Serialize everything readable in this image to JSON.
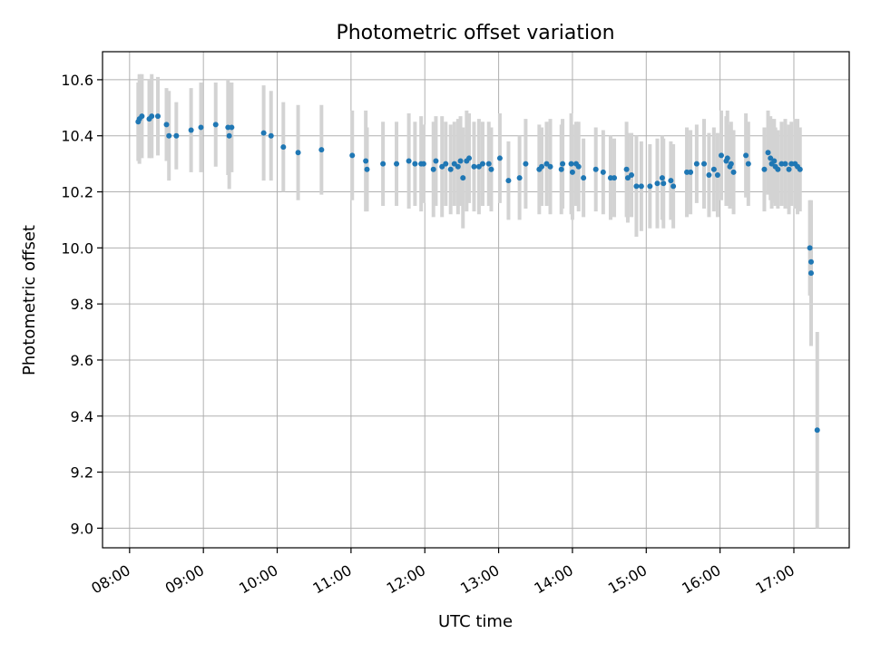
{
  "chart_data": {
    "type": "scatter",
    "title": "Photometric offset variation",
    "xlabel": "UTC time",
    "ylabel": "Photometric offset",
    "x_tick_labels": [
      "08:00",
      "09:00",
      "10:00",
      "11:00",
      "12:00",
      "13:00",
      "14:00",
      "15:00",
      "16:00",
      "17:00"
    ],
    "y_tick_labels": [
      "9.0",
      "9.2",
      "9.4",
      "9.6",
      "9.8",
      "10.0",
      "10.2",
      "10.4",
      "10.6"
    ],
    "xlim": [
      "07:38",
      "17:45"
    ],
    "ylim": [
      8.93,
      10.7
    ],
    "grid": true,
    "colors": {
      "point": "#1f77b4",
      "errorbar": "#d3d3d3",
      "grid": "#b0b0b0",
      "axes": "#000000"
    },
    "points": [
      {
        "t": "08:07",
        "y": 10.45,
        "err": 0.14
      },
      {
        "t": "08:08",
        "y": 10.46,
        "err": 0.16
      },
      {
        "t": "08:10",
        "y": 10.47,
        "err": 0.15
      },
      {
        "t": "08:16",
        "y": 10.46,
        "err": 0.14
      },
      {
        "t": "08:18",
        "y": 10.47,
        "err": 0.15
      },
      {
        "t": "08:23",
        "y": 10.47,
        "err": 0.14
      },
      {
        "t": "08:30",
        "y": 10.44,
        "err": 0.13
      },
      {
        "t": "08:32",
        "y": 10.4,
        "err": 0.16
      },
      {
        "t": "08:38",
        "y": 10.4,
        "err": 0.12
      },
      {
        "t": "08:50",
        "y": 10.42,
        "err": 0.15
      },
      {
        "t": "08:58",
        "y": 10.43,
        "err": 0.16
      },
      {
        "t": "09:10",
        "y": 10.44,
        "err": 0.15
      },
      {
        "t": "09:20",
        "y": 10.43,
        "err": 0.17
      },
      {
        "t": "09:21",
        "y": 10.4,
        "err": 0.19
      },
      {
        "t": "09:23",
        "y": 10.43,
        "err": 0.16
      },
      {
        "t": "09:49",
        "y": 10.41,
        "err": 0.17
      },
      {
        "t": "09:55",
        "y": 10.4,
        "err": 0.16
      },
      {
        "t": "10:05",
        "y": 10.36,
        "err": 0.16
      },
      {
        "t": "10:17",
        "y": 10.34,
        "err": 0.17
      },
      {
        "t": "10:36",
        "y": 10.35,
        "err": 0.16
      },
      {
        "t": "11:01",
        "y": 10.33,
        "err": 0.16
      },
      {
        "t": "11:12",
        "y": 10.31,
        "err": 0.18
      },
      {
        "t": "11:13",
        "y": 10.28,
        "err": 0.15
      },
      {
        "t": "11:26",
        "y": 10.3,
        "err": 0.15
      },
      {
        "t": "11:37",
        "y": 10.3,
        "err": 0.15
      },
      {
        "t": "11:47",
        "y": 10.31,
        "err": 0.17
      },
      {
        "t": "11:52",
        "y": 10.3,
        "err": 0.15
      },
      {
        "t": "11:57",
        "y": 10.3,
        "err": 0.17
      },
      {
        "t": "11:59",
        "y": 10.3,
        "err": 0.14
      },
      {
        "t": "12:07",
        "y": 10.28,
        "err": 0.17
      },
      {
        "t": "12:09",
        "y": 10.31,
        "err": 0.16
      },
      {
        "t": "12:14",
        "y": 10.29,
        "err": 0.18
      },
      {
        "t": "12:17",
        "y": 10.3,
        "err": 0.15
      },
      {
        "t": "12:21",
        "y": 10.28,
        "err": 0.16
      },
      {
        "t": "12:24",
        "y": 10.3,
        "err": 0.15
      },
      {
        "t": "12:27",
        "y": 10.29,
        "err": 0.17
      },
      {
        "t": "12:29",
        "y": 10.31,
        "err": 0.16
      },
      {
        "t": "12:31",
        "y": 10.25,
        "err": 0.18
      },
      {
        "t": "12:34",
        "y": 10.31,
        "err": 0.18
      },
      {
        "t": "12:36",
        "y": 10.32,
        "err": 0.16
      },
      {
        "t": "12:40",
        "y": 10.29,
        "err": 0.16
      },
      {
        "t": "12:44",
        "y": 10.29,
        "err": 0.17
      },
      {
        "t": "12:47",
        "y": 10.3,
        "err": 0.15
      },
      {
        "t": "12:52",
        "y": 10.3,
        "err": 0.15
      },
      {
        "t": "12:54",
        "y": 10.28,
        "err": 0.15
      },
      {
        "t": "13:01",
        "y": 10.32,
        "err": 0.16
      },
      {
        "t": "13:08",
        "y": 10.24,
        "err": 0.14
      },
      {
        "t": "13:17",
        "y": 10.25,
        "err": 0.15
      },
      {
        "t": "13:22",
        "y": 10.3,
        "err": 0.16
      },
      {
        "t": "13:33",
        "y": 10.28,
        "err": 0.16
      },
      {
        "t": "13:35",
        "y": 10.29,
        "err": 0.14
      },
      {
        "t": "13:39",
        "y": 10.3,
        "err": 0.15
      },
      {
        "t": "13:42",
        "y": 10.29,
        "err": 0.17
      },
      {
        "t": "13:51",
        "y": 10.28,
        "err": 0.16
      },
      {
        "t": "13:52",
        "y": 10.3,
        "err": 0.16
      },
      {
        "t": "13:59",
        "y": 10.3,
        "err": 0.18
      },
      {
        "t": "14:00",
        "y": 10.27,
        "err": 0.17
      },
      {
        "t": "14:03",
        "y": 10.3,
        "err": 0.15
      },
      {
        "t": "14:05",
        "y": 10.29,
        "err": 0.16
      },
      {
        "t": "14:09",
        "y": 10.25,
        "err": 0.14
      },
      {
        "t": "14:19",
        "y": 10.28,
        "err": 0.15
      },
      {
        "t": "14:25",
        "y": 10.27,
        "err": 0.15
      },
      {
        "t": "14:31",
        "y": 10.25,
        "err": 0.15
      },
      {
        "t": "14:34",
        "y": 10.25,
        "err": 0.14
      },
      {
        "t": "14:44",
        "y": 10.28,
        "err": 0.17
      },
      {
        "t": "14:45",
        "y": 10.25,
        "err": 0.16
      },
      {
        "t": "14:48",
        "y": 10.26,
        "err": 0.15
      },
      {
        "t": "14:52",
        "y": 10.22,
        "err": 0.18
      },
      {
        "t": "14:56",
        "y": 10.22,
        "err": 0.16
      },
      {
        "t": "15:03",
        "y": 10.22,
        "err": 0.15
      },
      {
        "t": "15:09",
        "y": 10.23,
        "err": 0.16
      },
      {
        "t": "15:13",
        "y": 10.25,
        "err": 0.15
      },
      {
        "t": "15:14",
        "y": 10.23,
        "err": 0.16
      },
      {
        "t": "15:20",
        "y": 10.24,
        "err": 0.14
      },
      {
        "t": "15:22",
        "y": 10.22,
        "err": 0.15
      },
      {
        "t": "15:33",
        "y": 10.27,
        "err": 0.16
      },
      {
        "t": "15:36",
        "y": 10.27,
        "err": 0.15
      },
      {
        "t": "15:41",
        "y": 10.3,
        "err": 0.14
      },
      {
        "t": "15:47",
        "y": 10.3,
        "err": 0.16
      },
      {
        "t": "15:51",
        "y": 10.26,
        "err": 0.15
      },
      {
        "t": "15:55",
        "y": 10.28,
        "err": 0.15
      },
      {
        "t": "15:58",
        "y": 10.26,
        "err": 0.15
      },
      {
        "t": "16:01",
        "y": 10.33,
        "err": 0.16
      },
      {
        "t": "16:05",
        "y": 10.31,
        "err": 0.16
      },
      {
        "t": "16:06",
        "y": 10.32,
        "err": 0.17
      },
      {
        "t": "16:08",
        "y": 10.29,
        "err": 0.15
      },
      {
        "t": "16:09",
        "y": 10.3,
        "err": 0.15
      },
      {
        "t": "16:11",
        "y": 10.27,
        "err": 0.15
      },
      {
        "t": "16:21",
        "y": 10.33,
        "err": 0.15
      },
      {
        "t": "16:23",
        "y": 10.3,
        "err": 0.15
      },
      {
        "t": "16:36",
        "y": 10.28,
        "err": 0.15
      },
      {
        "t": "16:39",
        "y": 10.34,
        "err": 0.15
      },
      {
        "t": "16:41",
        "y": 10.32,
        "err": 0.15
      },
      {
        "t": "16:42",
        "y": 10.3,
        "err": 0.16
      },
      {
        "t": "16:44",
        "y": 10.31,
        "err": 0.15
      },
      {
        "t": "16:45",
        "y": 10.29,
        "err": 0.14
      },
      {
        "t": "16:47",
        "y": 10.28,
        "err": 0.14
      },
      {
        "t": "16:50",
        "y": 10.3,
        "err": 0.15
      },
      {
        "t": "16:53",
        "y": 10.3,
        "err": 0.16
      },
      {
        "t": "16:56",
        "y": 10.28,
        "err": 0.16
      },
      {
        "t": "16:58",
        "y": 10.3,
        "err": 0.15
      },
      {
        "t": "17:01",
        "y": 10.3,
        "err": 0.16
      },
      {
        "t": "17:03",
        "y": 10.29,
        "err": 0.17
      },
      {
        "t": "17:05",
        "y": 10.28,
        "err": 0.15
      },
      {
        "t": "17:13",
        "y": 10.0,
        "err": 0.17
      },
      {
        "t": "17:14",
        "y": 9.95,
        "err": 0.17
      },
      {
        "t": "17:14",
        "y": 9.91,
        "err": 0.26
      },
      {
        "t": "17:19",
        "y": 9.35,
        "err": 0.35
      }
    ]
  }
}
